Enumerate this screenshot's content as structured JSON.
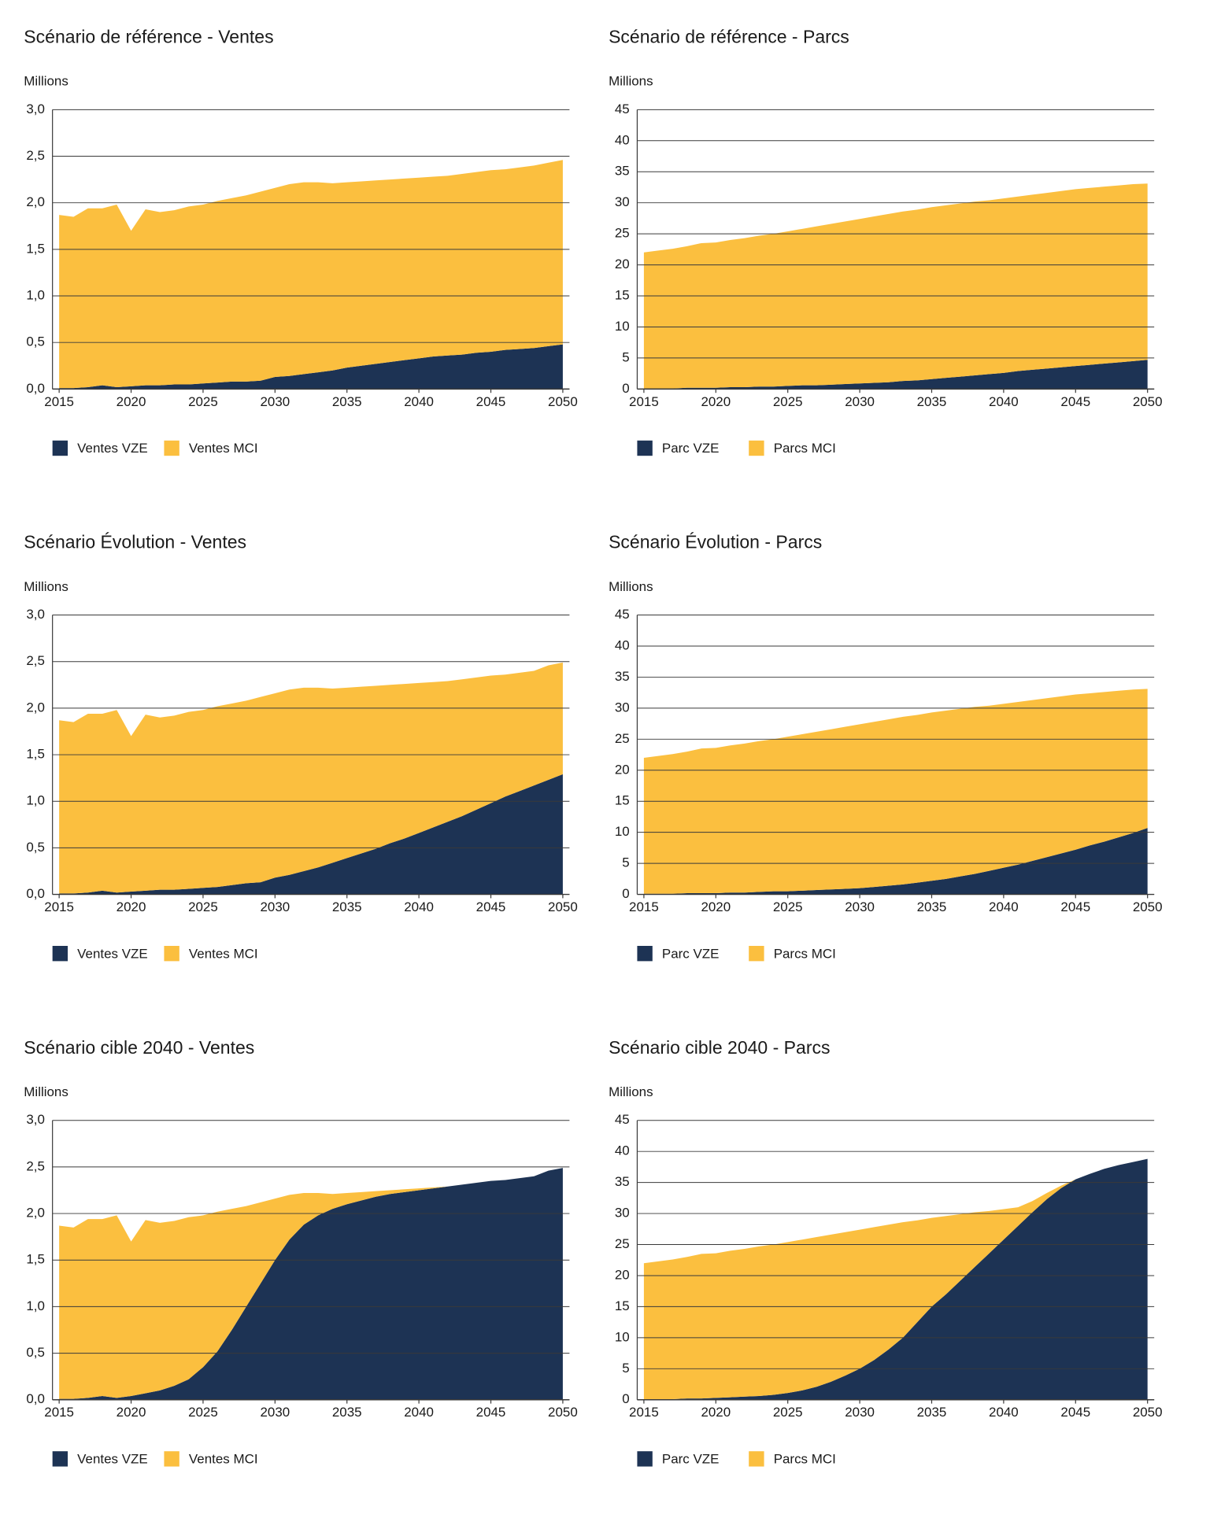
{
  "chart_data": [
    {
      "type": "area",
      "title": "Scénario de référence - Ventes",
      "y_label": "Millions",
      "x": [
        2015,
        2016,
        2017,
        2018,
        2019,
        2020,
        2021,
        2022,
        2023,
        2024,
        2025,
        2026,
        2027,
        2028,
        2029,
        2030,
        2031,
        2032,
        2033,
        2034,
        2035,
        2036,
        2037,
        2038,
        2039,
        2040,
        2041,
        2042,
        2043,
        2044,
        2045,
        2046,
        2047,
        2048,
        2049,
        2050
      ],
      "series": [
        {
          "name": "Ventes VZE",
          "color": "#1d3354",
          "values": [
            0.01,
            0.01,
            0.02,
            0.04,
            0.02,
            0.03,
            0.04,
            0.04,
            0.05,
            0.05,
            0.06,
            0.07,
            0.08,
            0.08,
            0.09,
            0.13,
            0.14,
            0.16,
            0.18,
            0.2,
            0.23,
            0.25,
            0.27,
            0.29,
            0.31,
            0.33,
            0.35,
            0.36,
            0.37,
            0.39,
            0.4,
            0.42,
            0.43,
            0.44,
            0.46,
            0.48
          ]
        },
        {
          "name": "Ventes MCI",
          "color": "#fbbf3f",
          "values": [
            1.86,
            1.84,
            1.92,
            1.9,
            1.96,
            1.67,
            1.89,
            1.86,
            1.87,
            1.91,
            1.92,
            1.95,
            1.97,
            2.0,
            2.03,
            2.03,
            2.06,
            2.06,
            2.04,
            2.01,
            1.99,
            1.98,
            1.97,
            1.96,
            1.95,
            1.94,
            1.93,
            1.93,
            1.94,
            1.94,
            1.95,
            1.94,
            1.95,
            1.96,
            1.97,
            1.98
          ]
        }
      ],
      "xlim": [
        2015,
        2050
      ],
      "xticks": [
        2015,
        2020,
        2025,
        2030,
        2035,
        2040,
        2045,
        2050
      ],
      "ylim": [
        0,
        3
      ],
      "yticks": [
        {
          "value": 0,
          "label": "0,0"
        },
        {
          "value": 0.5,
          "label": "0,5"
        },
        {
          "value": 1,
          "label": "1,0"
        },
        {
          "value": 1.5,
          "label": "1,5"
        },
        {
          "value": 2,
          "label": "2,0"
        },
        {
          "value": 2.5,
          "label": "2,5"
        },
        {
          "value": 3,
          "label": "3,0"
        }
      ],
      "grid": true
    },
    {
      "type": "area",
      "title": "Scénario de référence - Parcs",
      "y_label": "Millions",
      "x": [
        2015,
        2016,
        2017,
        2018,
        2019,
        2020,
        2021,
        2022,
        2023,
        2024,
        2025,
        2026,
        2027,
        2028,
        2029,
        2030,
        2031,
        2032,
        2033,
        2034,
        2035,
        2036,
        2037,
        2038,
        2039,
        2040,
        2041,
        2042,
        2043,
        2044,
        2045,
        2046,
        2047,
        2048,
        2049,
        2050
      ],
      "series": [
        {
          "name": "Parc VZE",
          "color": "#1d3354",
          "values": [
            0.1,
            0.1,
            0.1,
            0.2,
            0.2,
            0.2,
            0.3,
            0.3,
            0.4,
            0.4,
            0.5,
            0.6,
            0.6,
            0.7,
            0.8,
            0.9,
            1.0,
            1.1,
            1.3,
            1.4,
            1.6,
            1.8,
            2.0,
            2.2,
            2.4,
            2.6,
            2.9,
            3.1,
            3.3,
            3.5,
            3.7,
            3.9,
            4.1,
            4.3,
            4.5,
            4.7
          ]
        },
        {
          "name": "Parcs MCI",
          "color": "#fbbf3f",
          "values": [
            21.9,
            22.2,
            22.5,
            22.8,
            23.3,
            23.4,
            23.7,
            24.0,
            24.3,
            24.6,
            24.9,
            25.2,
            25.6,
            25.9,
            26.2,
            26.5,
            26.8,
            27.1,
            27.3,
            27.5,
            27.7,
            27.8,
            27.9,
            28.0,
            28.0,
            28.1,
            28.1,
            28.2,
            28.3,
            28.4,
            28.5,
            28.5,
            28.5,
            28.5,
            28.5,
            28.4
          ]
        }
      ],
      "xlim": [
        2015,
        2050
      ],
      "xticks": [
        2015,
        2020,
        2025,
        2030,
        2035,
        2040,
        2045,
        2050
      ],
      "ylim": [
        0,
        45
      ],
      "yticks": [
        0,
        5,
        10,
        15,
        20,
        25,
        30,
        35,
        40,
        45
      ],
      "grid": true
    },
    {
      "type": "area",
      "title": "Scénario Évolution - Ventes",
      "y_label": "Millions",
      "x": [
        2015,
        2016,
        2017,
        2018,
        2019,
        2020,
        2021,
        2022,
        2023,
        2024,
        2025,
        2026,
        2027,
        2028,
        2029,
        2030,
        2031,
        2032,
        2033,
        2034,
        2035,
        2036,
        2037,
        2038,
        2039,
        2040,
        2041,
        2042,
        2043,
        2044,
        2045,
        2046,
        2047,
        2048,
        2049,
        2050
      ],
      "series": [
        {
          "name": "Ventes VZE",
          "color": "#1d3354",
          "values": [
            0.01,
            0.01,
            0.02,
            0.04,
            0.02,
            0.03,
            0.04,
            0.05,
            0.05,
            0.06,
            0.07,
            0.08,
            0.1,
            0.12,
            0.13,
            0.18,
            0.21,
            0.25,
            0.29,
            0.34,
            0.39,
            0.44,
            0.49,
            0.55,
            0.6,
            0.66,
            0.72,
            0.78,
            0.84,
            0.91,
            0.98,
            1.05,
            1.11,
            1.17,
            1.23,
            1.29
          ]
        },
        {
          "name": "Ventes MCI",
          "color": "#fbbf3f",
          "values": [
            1.86,
            1.84,
            1.92,
            1.9,
            1.96,
            1.67,
            1.89,
            1.85,
            1.87,
            1.9,
            1.91,
            1.94,
            1.95,
            1.96,
            1.99,
            1.98,
            1.99,
            1.97,
            1.93,
            1.87,
            1.83,
            1.79,
            1.75,
            1.7,
            1.66,
            1.61,
            1.56,
            1.51,
            1.47,
            1.42,
            1.37,
            1.31,
            1.27,
            1.23,
            1.23,
            1.2
          ]
        }
      ],
      "xlim": [
        2015,
        2050
      ],
      "xticks": [
        2015,
        2020,
        2025,
        2030,
        2035,
        2040,
        2045,
        2050
      ],
      "ylim": [
        0,
        3
      ],
      "yticks": [
        {
          "value": 0,
          "label": "0,0"
        },
        {
          "value": 0.5,
          "label": "0,5"
        },
        {
          "value": 1,
          "label": "1,0"
        },
        {
          "value": 1.5,
          "label": "1,5"
        },
        {
          "value": 2,
          "label": "2,0"
        },
        {
          "value": 2.5,
          "label": "2,5"
        },
        {
          "value": 3,
          "label": "3,0"
        }
      ],
      "grid": true
    },
    {
      "type": "area",
      "title": "Scénario Évolution - Parcs",
      "y_label": "Millions",
      "x": [
        2015,
        2016,
        2017,
        2018,
        2019,
        2020,
        2021,
        2022,
        2023,
        2024,
        2025,
        2026,
        2027,
        2028,
        2029,
        2030,
        2031,
        2032,
        2033,
        2034,
        2035,
        2036,
        2037,
        2038,
        2039,
        2040,
        2041,
        2042,
        2043,
        2044,
        2045,
        2046,
        2047,
        2048,
        2049,
        2050
      ],
      "series": [
        {
          "name": "Parc VZE",
          "color": "#1d3354",
          "values": [
            0.1,
            0.1,
            0.1,
            0.2,
            0.2,
            0.2,
            0.3,
            0.3,
            0.4,
            0.5,
            0.5,
            0.6,
            0.7,
            0.8,
            0.9,
            1.0,
            1.2,
            1.4,
            1.6,
            1.9,
            2.2,
            2.5,
            2.9,
            3.3,
            3.8,
            4.3,
            4.8,
            5.4,
            6.0,
            6.6,
            7.2,
            7.9,
            8.5,
            9.2,
            9.9,
            10.7
          ]
        },
        {
          "name": "Parcs MCI",
          "color": "#fbbf3f",
          "values": [
            21.9,
            22.2,
            22.5,
            22.8,
            23.3,
            23.4,
            23.7,
            24.0,
            24.3,
            24.5,
            24.9,
            25.2,
            25.5,
            25.8,
            26.1,
            26.4,
            26.6,
            26.8,
            27.0,
            27.0,
            27.1,
            27.1,
            27.0,
            26.9,
            26.6,
            26.4,
            26.2,
            25.9,
            25.6,
            25.3,
            25.0,
            24.5,
            24.1,
            23.6,
            23.1,
            22.4
          ]
        }
      ],
      "xlim": [
        2015,
        2050
      ],
      "xticks": [
        2015,
        2020,
        2025,
        2030,
        2035,
        2040,
        2045,
        2050
      ],
      "ylim": [
        0,
        45
      ],
      "yticks": [
        0,
        5,
        10,
        15,
        20,
        25,
        30,
        35,
        40,
        45
      ],
      "grid": true
    },
    {
      "type": "area",
      "title": "Scénario cible 2040 - Ventes",
      "y_label": "Millions",
      "x": [
        2015,
        2016,
        2017,
        2018,
        2019,
        2020,
        2021,
        2022,
        2023,
        2024,
        2025,
        2026,
        2027,
        2028,
        2029,
        2030,
        2031,
        2032,
        2033,
        2034,
        2035,
        2036,
        2037,
        2038,
        2039,
        2040,
        2041,
        2042,
        2043,
        2044,
        2045,
        2046,
        2047,
        2048,
        2049,
        2050
      ],
      "series": [
        {
          "name": "Ventes VZE",
          "color": "#1d3354",
          "values": [
            0.01,
            0.01,
            0.02,
            0.04,
            0.02,
            0.04,
            0.07,
            0.1,
            0.15,
            0.22,
            0.35,
            0.52,
            0.75,
            1.0,
            1.25,
            1.5,
            1.72,
            1.88,
            1.98,
            2.05,
            2.1,
            2.14,
            2.18,
            2.21,
            2.23,
            2.25,
            2.27,
            2.29,
            2.31,
            2.33,
            2.35,
            2.36,
            2.38,
            2.4,
            2.46,
            2.49
          ]
        },
        {
          "name": "Ventes MCI",
          "color": "#fbbf3f",
          "values": [
            1.86,
            1.84,
            1.92,
            1.9,
            1.96,
            1.66,
            1.86,
            1.8,
            1.77,
            1.74,
            1.63,
            1.5,
            1.3,
            1.08,
            0.87,
            0.66,
            0.48,
            0.34,
            0.24,
            0.16,
            0.12,
            0.09,
            0.06,
            0.04,
            0.03,
            0.02,
            0.01,
            0,
            0,
            0,
            0,
            0,
            0,
            0,
            0,
            0
          ]
        }
      ],
      "xlim": [
        2015,
        2050
      ],
      "xticks": [
        2015,
        2020,
        2025,
        2030,
        2035,
        2040,
        2045,
        2050
      ],
      "ylim": [
        0,
        3
      ],
      "yticks": [
        {
          "value": 0,
          "label": "0,0"
        },
        {
          "value": 0.5,
          "label": "0,5"
        },
        {
          "value": 1,
          "label": "1,0"
        },
        {
          "value": 1.5,
          "label": "1,5"
        },
        {
          "value": 2,
          "label": "2,0"
        },
        {
          "value": 2.5,
          "label": "2,5"
        },
        {
          "value": 3,
          "label": "3,0"
        }
      ],
      "grid": true
    },
    {
      "type": "area",
      "title": "Scénario cible 2040 - Parcs",
      "y_label": "Millions",
      "x": [
        2015,
        2016,
        2017,
        2018,
        2019,
        2020,
        2021,
        2022,
        2023,
        2024,
        2025,
        2026,
        2027,
        2028,
        2029,
        2030,
        2031,
        2032,
        2033,
        2034,
        2035,
        2036,
        2037,
        2038,
        2039,
        2040,
        2041,
        2042,
        2043,
        2044,
        2045,
        2046,
        2047,
        2048,
        2049,
        2050
      ],
      "series": [
        {
          "name": "Parc VZE",
          "color": "#1d3354",
          "values": [
            0.1,
            0.1,
            0.1,
            0.2,
            0.2,
            0.3,
            0.4,
            0.5,
            0.6,
            0.8,
            1.1,
            1.5,
            2.1,
            2.9,
            3.9,
            5.0,
            6.4,
            8.1,
            10.0,
            12.5,
            15.0,
            17.0,
            19.2,
            21.4,
            23.6,
            25.8,
            28.0,
            30.2,
            32.3,
            34.1,
            35.5,
            36.4,
            37.2,
            37.8,
            38.3,
            38.8
          ]
        },
        {
          "name": "Parcs MCI",
          "color": "#fbbf3f",
          "values": [
            21.9,
            22.2,
            22.5,
            22.8,
            23.3,
            23.3,
            23.6,
            23.8,
            24.1,
            24.2,
            24.3,
            24.3,
            24.1,
            23.7,
            23.1,
            22.4,
            21.4,
            20.1,
            18.6,
            16.4,
            14.3,
            12.6,
            10.7,
            8.8,
            6.8,
            4.9,
            3.0,
            1.8,
            1.0,
            0.4,
            0,
            0,
            0,
            0,
            0,
            0
          ]
        }
      ],
      "xlim": [
        2015,
        2050
      ],
      "xticks": [
        2015,
        2020,
        2025,
        2030,
        2035,
        2040,
        2045,
        2050
      ],
      "ylim": [
        0,
        45
      ],
      "yticks": [
        0,
        5,
        10,
        15,
        20,
        25,
        30,
        35,
        40,
        45
      ],
      "grid": true
    }
  ]
}
